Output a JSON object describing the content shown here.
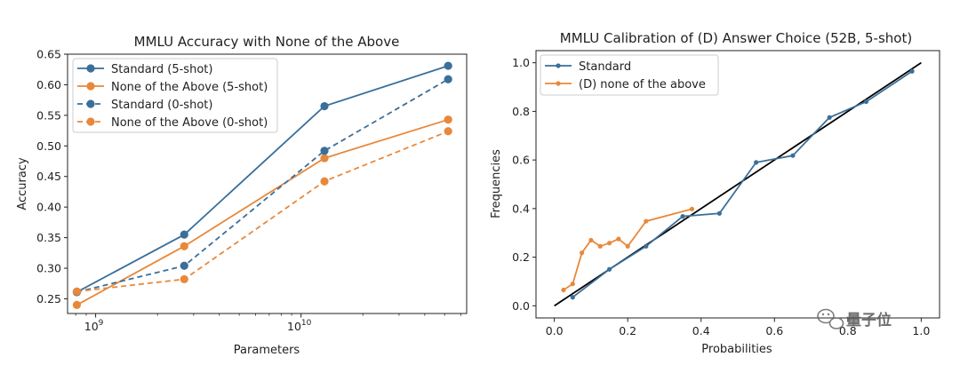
{
  "chart_data": [
    {
      "type": "line",
      "title": "MMLU Accuracy with None of the Above",
      "xlabel": "Parameters",
      "ylabel": "Accuracy",
      "xscale": "log",
      "xlim": [
        730000000.0,
        64000000000.0
      ],
      "ylim": [
        0.226,
        0.65
      ],
      "yticks": [
        0.25,
        0.3,
        0.35,
        0.4,
        0.45,
        0.5,
        0.55,
        0.6,
        0.65
      ],
      "ytick_labels": [
        "0.25",
        "0.30",
        "0.35",
        "0.40",
        "0.45",
        "0.50",
        "0.55",
        "0.60",
        "0.65"
      ],
      "xticks": [
        {
          "base": "10",
          "exp": "9",
          "value": 1000000000.0
        },
        {
          "base": "10",
          "exp": "10",
          "value": 10000000000.0
        }
      ],
      "x": [
        810000000.0,
        2700000000.0,
        13000000000.0,
        52000000000.0
      ],
      "legend_position": "top-left",
      "series": [
        {
          "name": "Standard (5-shot)",
          "values": [
            0.261,
            0.355,
            0.565,
            0.631
          ],
          "color": "#3a6f9a",
          "dash": "solid"
        },
        {
          "name": "None of the Above (5-shot)",
          "values": [
            0.24,
            0.336,
            0.48,
            0.543
          ],
          "color": "#e8883a",
          "dash": "solid"
        },
        {
          "name": "Standard (0-shot)",
          "values": [
            0.261,
            0.304,
            0.492,
            0.609
          ],
          "color": "#3a6f9a",
          "dash": "dashed"
        },
        {
          "name": "None of the Above (0-shot)",
          "values": [
            0.262,
            0.282,
            0.442,
            0.524
          ],
          "color": "#e8883a",
          "dash": "dashed"
        }
      ]
    },
    {
      "type": "line",
      "title": "MMLU Calibration of (D) Answer Choice (52B, 5-shot)",
      "xlabel": "Probabilities",
      "ylabel": "Frequencies",
      "xlim": [
        -0.05,
        1.05
      ],
      "ylim": [
        -0.05,
        1.05
      ],
      "xticks": [
        0.0,
        0.2,
        0.4,
        0.6,
        0.8,
        1.0
      ],
      "xtick_labels": [
        "0.0",
        "0.2",
        "0.4",
        "0.6",
        "0.8",
        "1.0"
      ],
      "yticks": [
        0.0,
        0.2,
        0.4,
        0.6,
        0.8,
        1.0
      ],
      "ytick_labels": [
        "0.0",
        "0.2",
        "0.4",
        "0.6",
        "0.8",
        "1.0"
      ],
      "legend_position": "top-left",
      "diagonal": {
        "x": [
          0,
          1
        ],
        "y": [
          0,
          1
        ],
        "color": "#000000"
      },
      "series": [
        {
          "name": "Standard",
          "color": "#3a6f9a",
          "x": [
            0.05,
            0.15,
            0.25,
            0.35,
            0.45,
            0.55,
            0.65,
            0.75,
            0.85,
            0.975
          ],
          "y": [
            0.035,
            0.15,
            0.245,
            0.368,
            0.38,
            0.59,
            0.618,
            0.775,
            0.84,
            0.965
          ]
        },
        {
          "name": "(D) none of the above",
          "color": "#e8883a",
          "x": [
            0.025,
            0.05,
            0.075,
            0.1,
            0.125,
            0.15,
            0.175,
            0.2,
            0.25,
            0.375
          ],
          "y": [
            0.065,
            0.09,
            0.218,
            0.27,
            0.245,
            0.258,
            0.275,
            0.245,
            0.348,
            0.398
          ]
        }
      ]
    }
  ],
  "watermark": {
    "text": "量子位",
    "icon": "wechat-icon"
  }
}
